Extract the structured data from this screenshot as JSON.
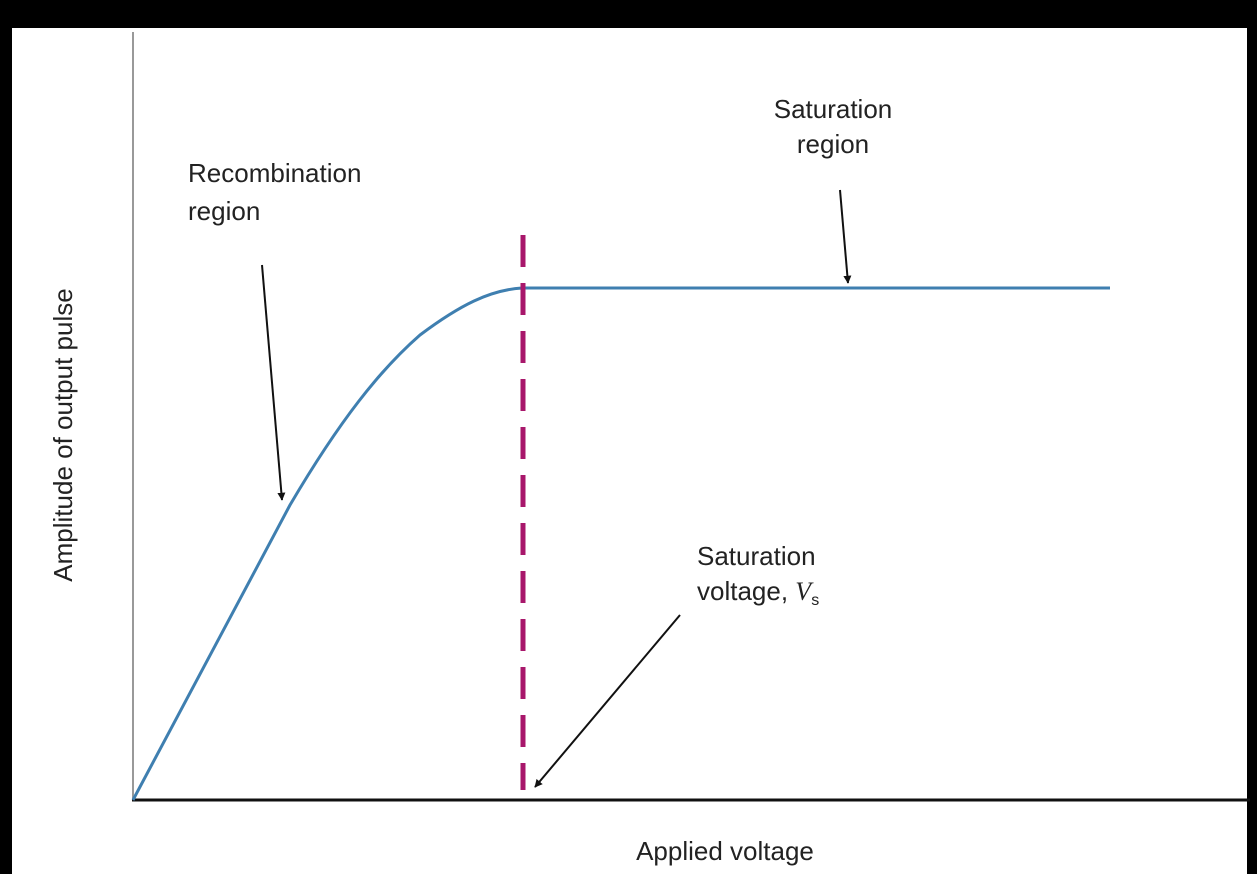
{
  "labels": {
    "recombination": [
      "Recombination",
      "region"
    ],
    "saturation_region": [
      "Saturation",
      "region"
    ],
    "saturation_voltage": {
      "line1": "Saturation",
      "line2": "voltage, ",
      "symbol": "V",
      "subscript": "s"
    }
  },
  "axes": {
    "x_label": "Applied voltage",
    "y_label": "Amplitude of output pulse"
  }
}
